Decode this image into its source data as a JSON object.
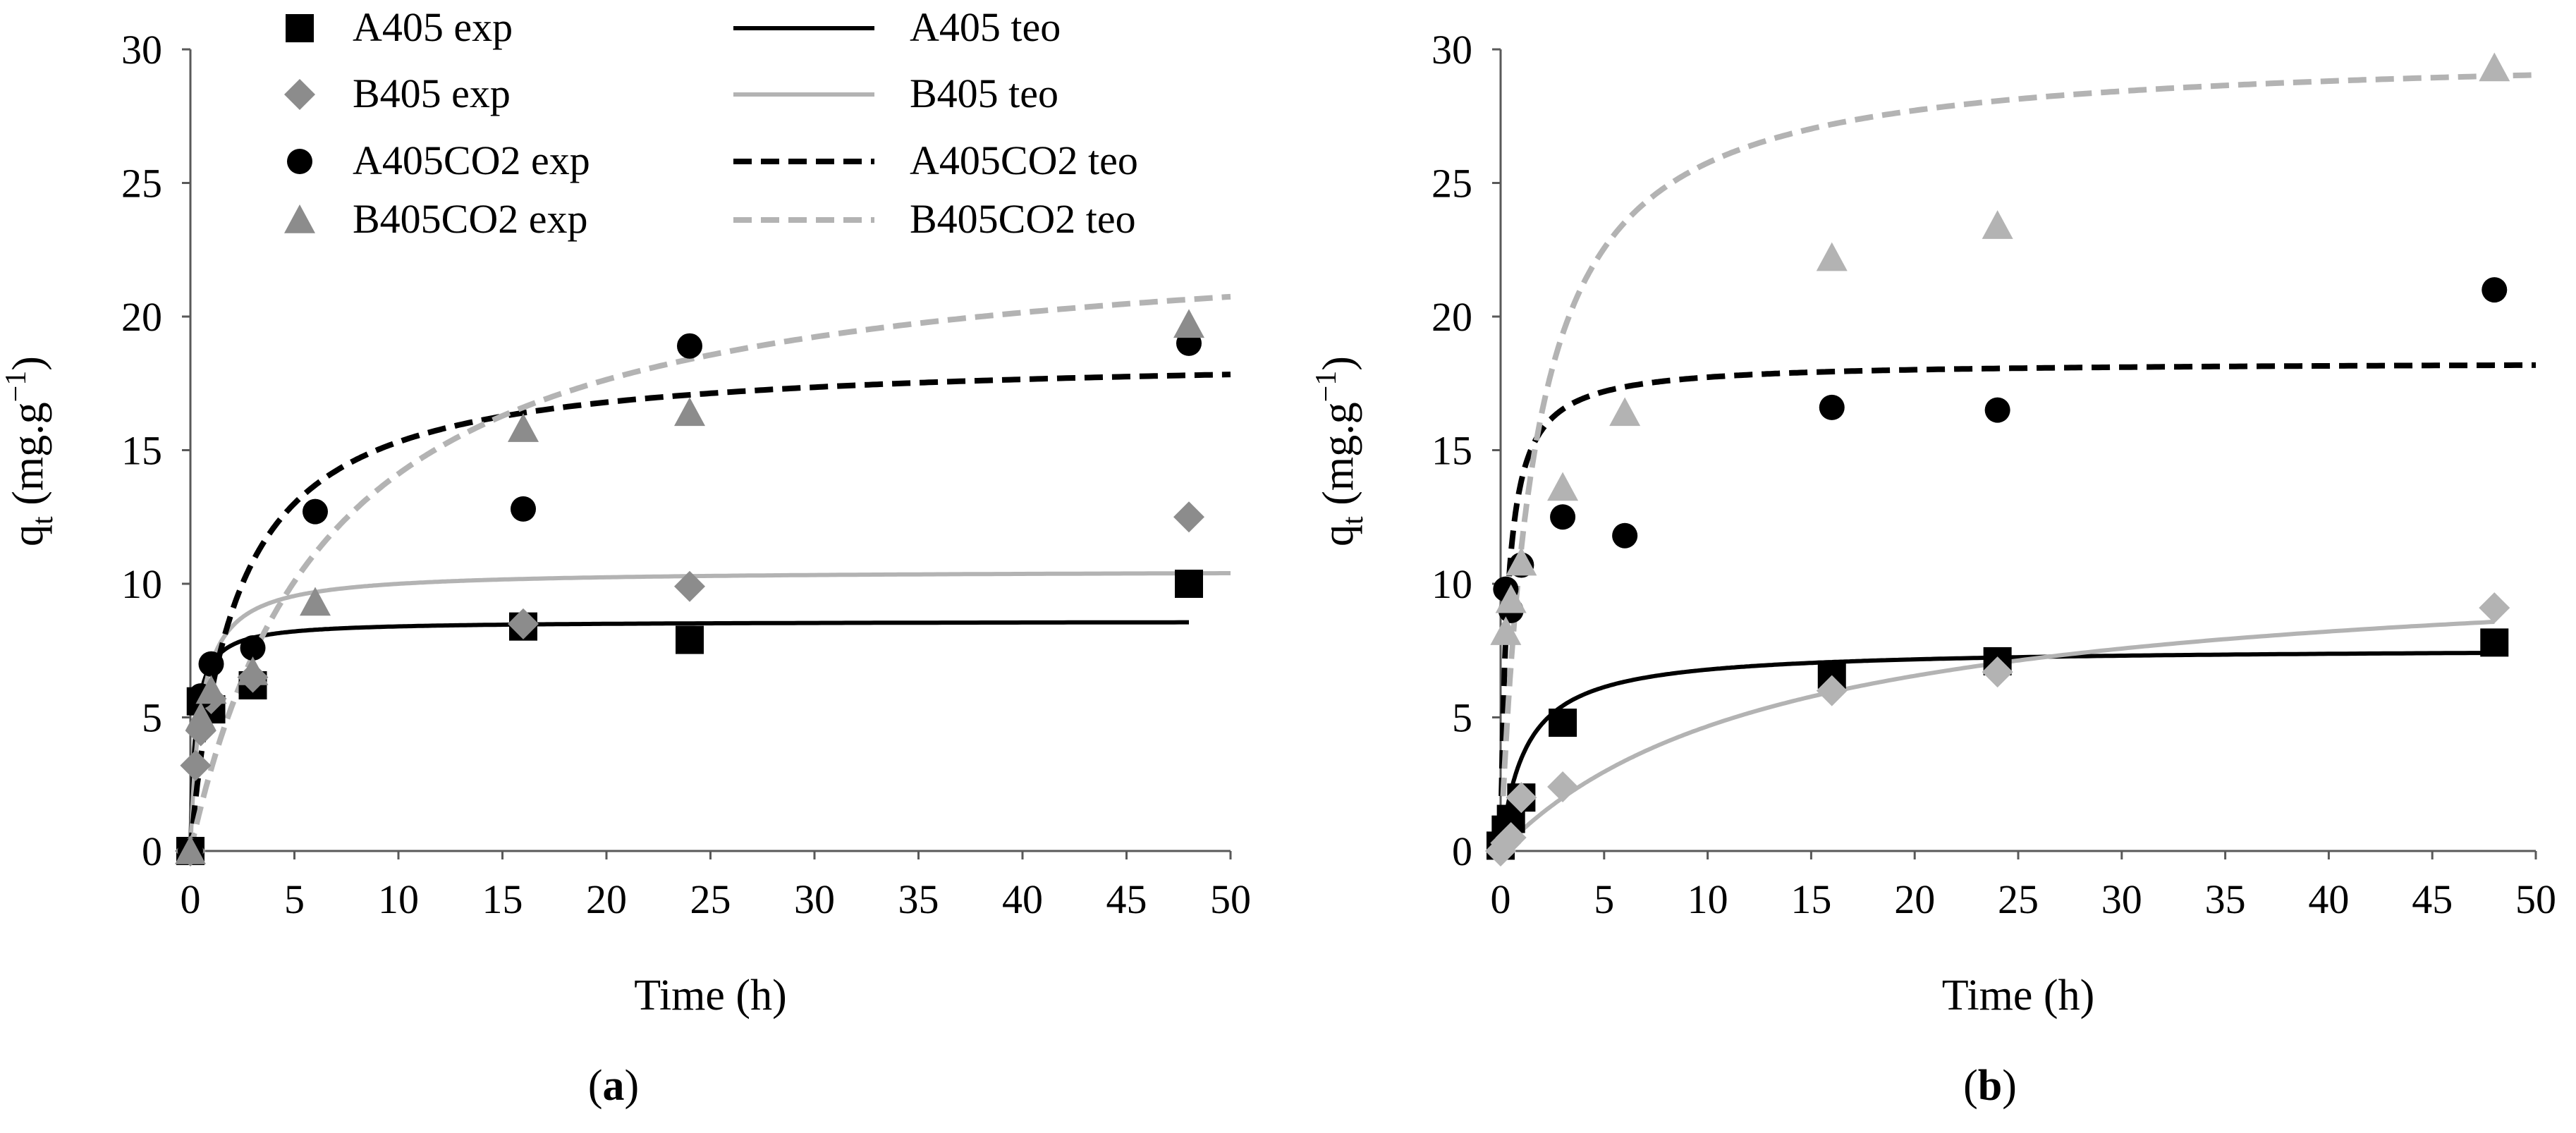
{
  "figure": {
    "panel_labels": [
      {
        "open": "(",
        "letter": "a",
        "close": ")"
      },
      {
        "open": "(",
        "letter": "b",
        "close": ")"
      }
    ],
    "legend": [
      {
        "label": "A405 exp",
        "kind": "marker",
        "marker": "square",
        "color": "#000000"
      },
      {
        "label": "A405 teo",
        "kind": "line",
        "dash": "solid",
        "color": "#000000"
      },
      {
        "label": "B405 exp",
        "kind": "marker",
        "marker": "diamond",
        "color": "#8c8c8c"
      },
      {
        "label": "B405 teo",
        "kind": "line",
        "dash": "solid",
        "color": "#b3b3b3"
      },
      {
        "label": "A405CO2 exp",
        "kind": "marker",
        "marker": "circle",
        "color": "#000000"
      },
      {
        "label": "A405CO2 teo",
        "kind": "line",
        "dash": "dashed",
        "color": "#000000"
      },
      {
        "label": "B405CO2 exp",
        "kind": "marker",
        "marker": "triangle",
        "color": "#8c8c8c"
      },
      {
        "label": "B405CO2 teo",
        "kind": "line",
        "dash": "dashed",
        "color": "#b3b3b3"
      }
    ]
  },
  "chart_data": [
    {
      "type": "scatter",
      "panel": "a",
      "xlabel": "Time (h)",
      "ylabel": {
        "main": "q",
        "sub": "t",
        "units_open": " (mg.g",
        "sup": "−1",
        "units_close": ")"
      },
      "xlim": [
        0,
        50
      ],
      "ylim": [
        0,
        30
      ],
      "xticks": [
        "0",
        "5",
        "10",
        "15",
        "20",
        "25",
        "30",
        "35",
        "40",
        "45",
        "50"
      ],
      "yticks": [
        "0",
        "5",
        "10",
        "15",
        "20",
        "25",
        "30"
      ],
      "grid": false,
      "legend_position": "top",
      "series_exp": [
        {
          "name": "A405 exp",
          "marker": "square",
          "color": "#000000",
          "x": [
            0,
            0.5,
            1,
            3,
            16,
            24,
            48
          ],
          "y": [
            0,
            5.6,
            5.3,
            6.2,
            8.4,
            7.9,
            10.0
          ]
        },
        {
          "name": "B405 exp",
          "marker": "diamond",
          "color": "#8c8c8c",
          "x": [
            0,
            0.25,
            0.5,
            1,
            3,
            16,
            24,
            48
          ],
          "y": [
            0,
            3.2,
            4.5,
            5.7,
            6.5,
            8.5,
            9.9,
            12.5
          ]
        },
        {
          "name": "A405CO2 exp",
          "marker": "circle",
          "color": "#000000",
          "x": [
            0,
            0.5,
            1,
            3,
            6,
            16,
            24,
            48
          ],
          "y": [
            0,
            5.8,
            7.0,
            7.6,
            12.7,
            12.8,
            18.9,
            19.0
          ]
        },
        {
          "name": "B405CO2 exp",
          "marker": "triangle",
          "color": "#8c8c8c",
          "x": [
            0,
            0.5,
            1,
            3,
            6,
            16,
            24,
            48
          ],
          "y": [
            0,
            5.0,
            6.0,
            6.7,
            9.3,
            15.8,
            16.4,
            19.7
          ]
        }
      ],
      "series_teo": [
        {
          "name": "A405 teo",
          "color": "#000000",
          "dash": "solid",
          "qe": 8.6,
          "k": 0.5,
          "xmax": 48
        },
        {
          "name": "B405 teo",
          "color": "#b3b3b3",
          "dash": "solid",
          "qe": 10.5,
          "k": 0.19,
          "xmax": 50
        },
        {
          "name": "A405CO2 teo",
          "color": "#000000",
          "dash": "dashed",
          "qe": 18.6,
          "k": 0.025,
          "xmax": 50
        },
        {
          "name": "B405CO2 teo",
          "color": "#b3b3b3",
          "dash": "dashed",
          "qe": 23.5,
          "k": 0.0064,
          "xmax": 50
        }
      ]
    },
    {
      "type": "scatter",
      "panel": "b",
      "xlabel": "Time (h)",
      "ylabel": {
        "main": "q",
        "sub": "t",
        "units_open": " (mg.g",
        "sup": "−1",
        "units_close": ")"
      },
      "xlim": [
        0,
        50
      ],
      "ylim": [
        0,
        30
      ],
      "xticks": [
        "0",
        "5",
        "10",
        "15",
        "20",
        "25",
        "30",
        "35",
        "40",
        "45",
        "50"
      ],
      "yticks": [
        "0",
        "5",
        "10",
        "15",
        "20",
        "25",
        "30"
      ],
      "grid": false,
      "series_exp": [
        {
          "name": "A405 exp",
          "marker": "square",
          "color": "#000000",
          "x": [
            0,
            0.25,
            0.5,
            1,
            3,
            16,
            24,
            48
          ],
          "y": [
            0.2,
            0.8,
            1.2,
            2.0,
            4.8,
            6.6,
            7.1,
            7.8
          ]
        },
        {
          "name": "B405 exp",
          "marker": "diamond",
          "color": "#b3b3b3",
          "x": [
            0,
            0.25,
            0.5,
            1,
            3,
            16,
            24,
            48
          ],
          "y": [
            0,
            0.3,
            0.5,
            2.0,
            2.4,
            6.0,
            6.7,
            9.1
          ]
        },
        {
          "name": "A405CO2 exp",
          "marker": "circle",
          "color": "#000000",
          "x": [
            0.25,
            0.5,
            1,
            3,
            6,
            16,
            24,
            48
          ],
          "y": [
            9.8,
            9.0,
            10.7,
            12.5,
            11.8,
            16.6,
            16.5,
            21.0
          ]
        },
        {
          "name": "B405CO2 exp",
          "marker": "triangle",
          "color": "#b3b3b3",
          "x": [
            0.25,
            0.5,
            1,
            3,
            6,
            16,
            24,
            48
          ],
          "y": [
            8.2,
            9.4,
            10.8,
            13.6,
            16.4,
            22.2,
            23.4,
            29.3
          ]
        }
      ],
      "series_teo": [
        {
          "name": "A405 teo",
          "color": "#000000",
          "dash": "solid",
          "qe": 7.6,
          "k": 0.11,
          "xmax": 48
        },
        {
          "name": "B405 teo",
          "color": "#b3b3b3",
          "dash": "solid",
          "qe": 11.0,
          "k": 0.0067,
          "xmax": 48
        },
        {
          "name": "A405CO2 teo",
          "color": "#000000",
          "dash": "dashed",
          "qe": 18.3,
          "k": 0.17,
          "xmax": 50
        },
        {
          "name": "B405CO2 teo",
          "color": "#b3b3b3",
          "dash": "dashed",
          "qe": 30.0,
          "k": 0.0202,
          "xmax": 50
        }
      ]
    }
  ]
}
